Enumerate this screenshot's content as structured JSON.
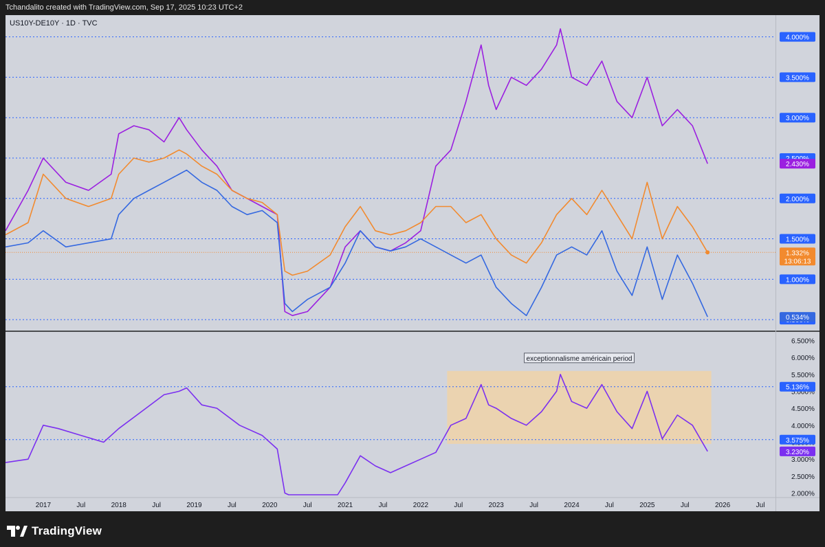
{
  "header": {
    "text": "Tchandalito created with TradingView.com, Sep 17, 2025 10:23 UTC+2"
  },
  "footer": {
    "brand": "TradingView",
    "logo_icon": "tradingview-logo-icon"
  },
  "chart_data": [
    {
      "type": "line",
      "title": "US10Y-DE10Y · 1D · TVC",
      "y_axis": {
        "ticks": [
          "4.000%",
          "3.500%",
          "3.000%",
          "2.500%",
          "2.000%",
          "1.500%",
          "1.000%",
          "0.500%"
        ],
        "ylim": [
          0.45,
          4.15
        ],
        "gridlines_dotted_blue": [
          0.5,
          1.0,
          1.5,
          2.0,
          2.5,
          3.0,
          3.5,
          4.0
        ]
      },
      "series": [
        {
          "color": "#9b1fe0",
          "x": [
            2016.5,
            2016.8,
            2017.0,
            2017.3,
            2017.6,
            2017.9,
            2018.0,
            2018.2,
            2018.4,
            2018.6,
            2018.8,
            2018.9,
            2019.1,
            2019.3,
            2019.5,
            2019.7,
            2019.9,
            2020.1,
            2020.2,
            2020.3,
            2020.5,
            2020.8,
            2021.0,
            2021.2,
            2021.4,
            2021.6,
            2021.8,
            2022.0,
            2022.2,
            2022.4,
            2022.6,
            2022.8,
            2022.9,
            2023.0,
            2023.2,
            2023.4,
            2023.6,
            2023.8,
            2023.85,
            2024.0,
            2024.2,
            2024.4,
            2024.6,
            2024.8,
            2025.0,
            2025.2,
            2025.4,
            2025.6,
            2025.8
          ],
          "y": [
            1.6,
            2.1,
            2.5,
            2.2,
            2.1,
            2.3,
            2.8,
            2.9,
            2.85,
            2.7,
            3.0,
            2.85,
            2.6,
            2.4,
            2.1,
            2.0,
            1.9,
            1.8,
            0.6,
            0.55,
            0.6,
            0.9,
            1.4,
            1.6,
            1.4,
            1.35,
            1.45,
            1.6,
            2.4,
            2.6,
            3.2,
            3.9,
            3.4,
            3.1,
            3.5,
            3.4,
            3.6,
            3.9,
            4.1,
            3.5,
            3.4,
            3.7,
            3.2,
            3.0,
            3.5,
            2.9,
            3.1,
            2.9,
            2.43
          ]
        },
        {
          "color": "#f28a2e",
          "x": [
            2016.5,
            2016.8,
            2017.0,
            2017.3,
            2017.6,
            2017.9,
            2018.0,
            2018.2,
            2018.4,
            2018.6,
            2018.8,
            2018.9,
            2019.1,
            2019.3,
            2019.5,
            2019.7,
            2019.9,
            2020.1,
            2020.2,
            2020.3,
            2020.5,
            2020.8,
            2021.0,
            2021.2,
            2021.4,
            2021.6,
            2021.8,
            2022.0,
            2022.2,
            2022.4,
            2022.6,
            2022.8,
            2023.0,
            2023.2,
            2023.4,
            2023.6,
            2023.8,
            2024.0,
            2024.2,
            2024.4,
            2024.6,
            2024.8,
            2025.0,
            2025.2,
            2025.4,
            2025.6,
            2025.8
          ],
          "y": [
            1.55,
            1.7,
            2.3,
            2.0,
            1.9,
            2.0,
            2.3,
            2.5,
            2.45,
            2.5,
            2.6,
            2.55,
            2.4,
            2.3,
            2.1,
            2.0,
            1.95,
            1.8,
            1.1,
            1.05,
            1.1,
            1.3,
            1.65,
            1.9,
            1.6,
            1.55,
            1.6,
            1.7,
            1.9,
            1.9,
            1.7,
            1.8,
            1.5,
            1.3,
            1.2,
            1.45,
            1.8,
            2.0,
            1.8,
            2.1,
            1.8,
            1.5,
            2.2,
            1.5,
            1.9,
            1.65,
            1.332
          ]
        },
        {
          "color": "#3468e0",
          "x": [
            2016.5,
            2016.8,
            2017.0,
            2017.3,
            2017.6,
            2017.9,
            2018.0,
            2018.2,
            2018.4,
            2018.6,
            2018.8,
            2018.9,
            2019.1,
            2019.3,
            2019.5,
            2019.7,
            2019.9,
            2020.1,
            2020.2,
            2020.3,
            2020.5,
            2020.8,
            2021.0,
            2021.2,
            2021.4,
            2021.6,
            2021.8,
            2022.0,
            2022.2,
            2022.4,
            2022.6,
            2022.8,
            2023.0,
            2023.2,
            2023.4,
            2023.6,
            2023.8,
            2024.0,
            2024.2,
            2024.4,
            2024.6,
            2024.8,
            2025.0,
            2025.2,
            2025.4,
            2025.6,
            2025.8
          ],
          "y": [
            1.4,
            1.45,
            1.6,
            1.4,
            1.45,
            1.5,
            1.8,
            2.0,
            2.1,
            2.2,
            2.3,
            2.35,
            2.2,
            2.1,
            1.9,
            1.8,
            1.85,
            1.7,
            0.7,
            0.6,
            0.75,
            0.9,
            1.2,
            1.6,
            1.4,
            1.35,
            1.4,
            1.5,
            1.4,
            1.3,
            1.2,
            1.3,
            0.9,
            0.7,
            0.55,
            0.9,
            1.3,
            1.4,
            1.3,
            1.6,
            1.1,
            0.8,
            1.4,
            0.75,
            1.3,
            0.95,
            0.534
          ]
        }
      ],
      "price_labels": [
        {
          "text": "2.430%",
          "color": "#9b1fe0",
          "value": 2.43
        },
        {
          "text": "1.332%",
          "color": "#f28a2e",
          "value": 1.332
        },
        {
          "text": "13:06:13",
          "color": "#f28a2e",
          "value": 1.332
        },
        {
          "text": "0.534%",
          "color": "#3468e0",
          "value": 0.534
        }
      ]
    },
    {
      "type": "line",
      "y_axis": {
        "ticks": [
          "6.500%",
          "6.000%",
          "5.500%",
          "5.000%",
          "4.500%",
          "4.000%",
          "3.500%",
          "3.000%",
          "2.500%",
          "2.000%"
        ],
        "ylim": [
          1.95,
          6.65
        ]
      },
      "series": [
        {
          "color": "#7b2ff0",
          "x": [
            2016.5,
            2016.8,
            2017.0,
            2017.2,
            2017.5,
            2017.8,
            2018.0,
            2018.3,
            2018.6,
            2018.8,
            2018.9,
            2019.1,
            2019.3,
            2019.6,
            2019.9,
            2020.1,
            2020.2,
            2020.25,
            2020.9,
            2021.0,
            2021.2,
            2021.4,
            2021.6,
            2021.8,
            2022.0,
            2022.2,
            2022.4,
            2022.6,
            2022.8,
            2022.9,
            2023.0,
            2023.2,
            2023.4,
            2023.6,
            2023.8,
            2023.85,
            2024.0,
            2024.2,
            2024.4,
            2024.6,
            2024.8,
            2025.0,
            2025.2,
            2025.4,
            2025.6,
            2025.8
          ],
          "y": [
            2.9,
            3.0,
            4.0,
            3.9,
            3.7,
            3.5,
            3.9,
            4.4,
            4.9,
            5.0,
            5.1,
            4.6,
            4.5,
            4.0,
            3.7,
            3.3,
            2.0,
            1.95,
            1.95,
            2.3,
            3.1,
            2.8,
            2.6,
            2.8,
            3.0,
            3.2,
            4.0,
            4.2,
            5.2,
            4.6,
            4.5,
            4.2,
            4.0,
            4.4,
            5.0,
            5.5,
            4.7,
            4.5,
            5.2,
            4.4,
            3.9,
            5.0,
            3.6,
            4.3,
            4.0,
            3.23
          ]
        }
      ],
      "shaded_region": {
        "label": "exceptionnalisme américain period",
        "x_start": 2022.35,
        "x_end": 2025.85,
        "y_low": 3.45,
        "y_high": 5.6,
        "color": "#f0d2a8"
      },
      "reference_lines": [
        5.136,
        3.575
      ],
      "price_labels": [
        {
          "text": "5.136%",
          "color": "#2962ff",
          "value": 5.136
        },
        {
          "text": "3.575%",
          "color": "#2962ff",
          "value": 3.575
        },
        {
          "text": "3.230%",
          "color": "#7b2ff0",
          "value": 3.23
        }
      ],
      "x_axis": {
        "ticks": [
          "2017",
          "Jul",
          "2018",
          "Jul",
          "2019",
          "Jul",
          "2020",
          "Jul",
          "2021",
          "Jul",
          "2022",
          "Jul",
          "2023",
          "Jul",
          "2024",
          "Jul",
          "2025",
          "Jul",
          "2026",
          "Jul"
        ],
        "values": [
          2017.0,
          2017.5,
          2018.0,
          2018.5,
          2019.0,
          2019.5,
          2020.0,
          2020.5,
          2021.0,
          2021.5,
          2022.0,
          2022.5,
          2023.0,
          2023.5,
          2024.0,
          2024.5,
          2025.0,
          2025.5,
          2026.0,
          2026.5
        ]
      }
    }
  ]
}
